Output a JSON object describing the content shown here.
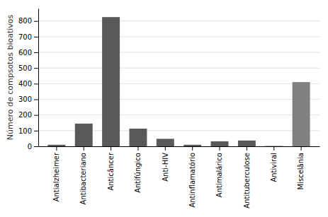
{
  "chart_data": {
    "type": "bar",
    "categories": [
      "Antialzheimer",
      "Antibacteriano",
      "Anticâncer",
      "Antifúngico",
      "Anti-HIV",
      "Antinflamatório",
      "Antimalárico",
      "Antituberculose",
      "Antiviral",
      "Miscelânia"
    ],
    "values": [
      10,
      145,
      825,
      113,
      48,
      10,
      32,
      37,
      2,
      410
    ],
    "colors": [
      "#595959",
      "#595959",
      "#595959",
      "#595959",
      "#595959",
      "#595959",
      "#595959",
      "#595959",
      "#595959",
      "#808080"
    ],
    "ylabel": "Número de compsotos bioativos",
    "ylim": [
      0,
      880
    ],
    "yticks": [
      0,
      100,
      200,
      300,
      400,
      500,
      600,
      700,
      800
    ],
    "grid": true
  }
}
